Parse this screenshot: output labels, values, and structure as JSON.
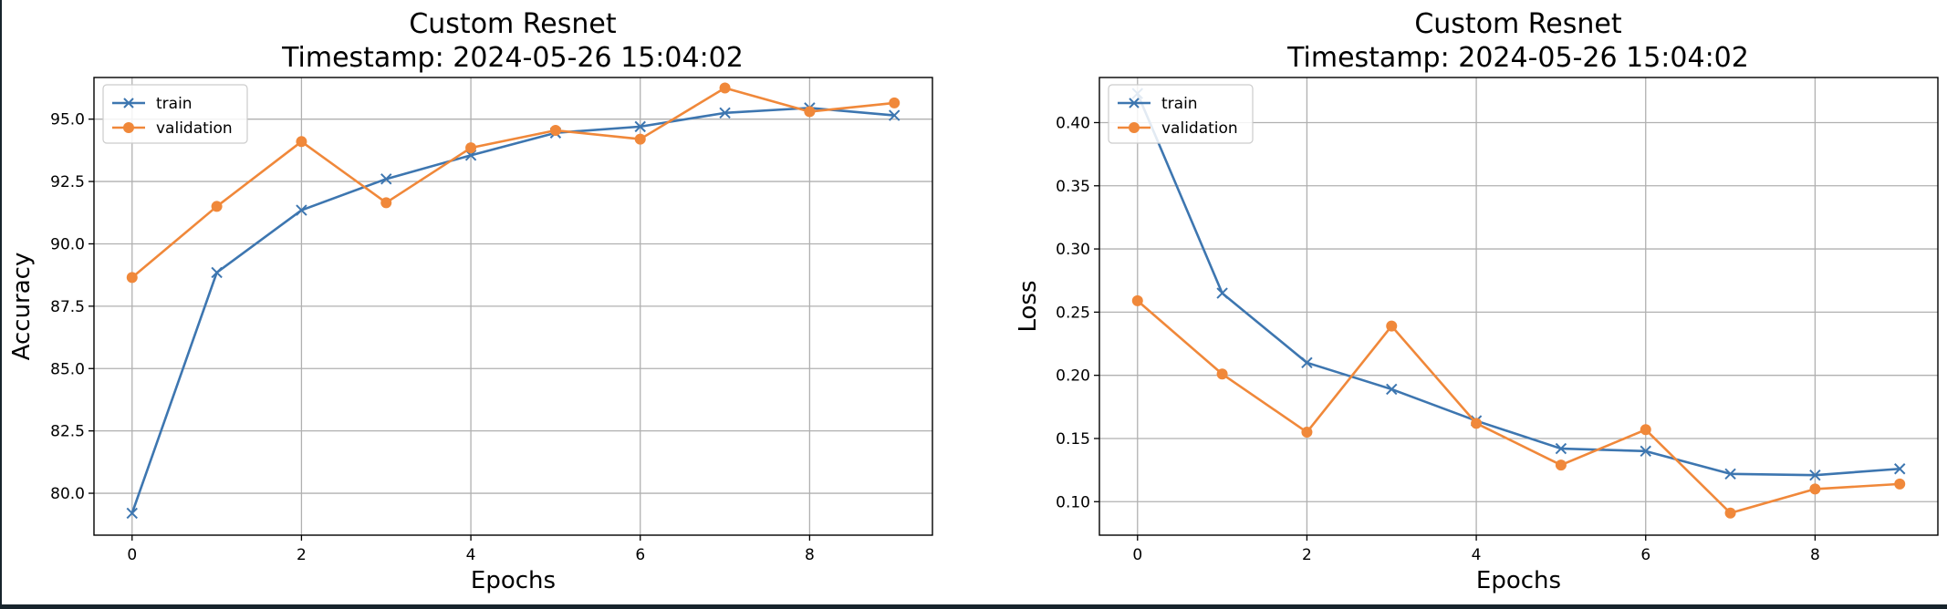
{
  "colors": {
    "train": "#3d76b0",
    "validation": "#f0883a",
    "grid": "#b0b0b0"
  },
  "chart_data": [
    {
      "type": "line",
      "title": "Custom Resnet",
      "subtitle": "Timestamp: 2024-05-26 15:04:02",
      "xlabel": "Epochs",
      "ylabel": "Accuracy",
      "x": [
        0,
        1,
        2,
        3,
        4,
        5,
        6,
        7,
        8,
        9
      ],
      "xticks": [
        0,
        2,
        4,
        6,
        8
      ],
      "xtick_labels": [
        "0",
        "2",
        "4",
        "6",
        "8"
      ],
      "yticks": [
        80.0,
        82.5,
        85.0,
        87.5,
        90.0,
        92.5,
        95.0
      ],
      "ytick_labels": [
        "80.0",
        "82.5",
        "85.0",
        "87.5",
        "90.0",
        "92.5",
        "95.0"
      ],
      "xlim": [
        -0.45,
        9.45
      ],
      "ylim": [
        78.32,
        96.67
      ],
      "grid": true,
      "legend": "upper-left",
      "series": [
        {
          "name": "train",
          "marker": "x",
          "values": [
            79.2,
            88.85,
            91.35,
            92.6,
            93.55,
            94.45,
            94.7,
            95.25,
            95.45,
            95.15
          ]
        },
        {
          "name": "validation",
          "marker": "o",
          "values": [
            88.65,
            91.5,
            94.1,
            91.65,
            93.85,
            94.55,
            94.2,
            96.25,
            95.3,
            95.65
          ]
        }
      ]
    },
    {
      "type": "line",
      "title": "Custom Resnet",
      "subtitle": "Timestamp: 2024-05-26 15:04:02",
      "xlabel": "Epochs",
      "ylabel": "Loss",
      "x": [
        0,
        1,
        2,
        3,
        4,
        5,
        6,
        7,
        8,
        9
      ],
      "xticks": [
        0,
        2,
        4,
        6,
        8
      ],
      "xtick_labels": [
        "0",
        "2",
        "4",
        "6",
        "8"
      ],
      "yticks": [
        0.1,
        0.15,
        0.2,
        0.25,
        0.3,
        0.35,
        0.4
      ],
      "ytick_labels": [
        "0.10",
        "0.15",
        "0.20",
        "0.25",
        "0.30",
        "0.35",
        "0.40"
      ],
      "xlim": [
        -0.45,
        9.45
      ],
      "ylim": [
        0.0735,
        0.4357
      ],
      "grid": true,
      "legend": "upper-left",
      "series": [
        {
          "name": "train",
          "marker": "x",
          "values": [
            0.423,
            0.265,
            0.21,
            0.189,
            0.164,
            0.142,
            0.14,
            0.122,
            0.121,
            0.126
          ]
        },
        {
          "name": "validation",
          "marker": "o",
          "values": [
            0.259,
            0.201,
            0.155,
            0.239,
            0.162,
            0.129,
            0.157,
            0.091,
            0.11,
            0.114
          ]
        }
      ]
    }
  ]
}
